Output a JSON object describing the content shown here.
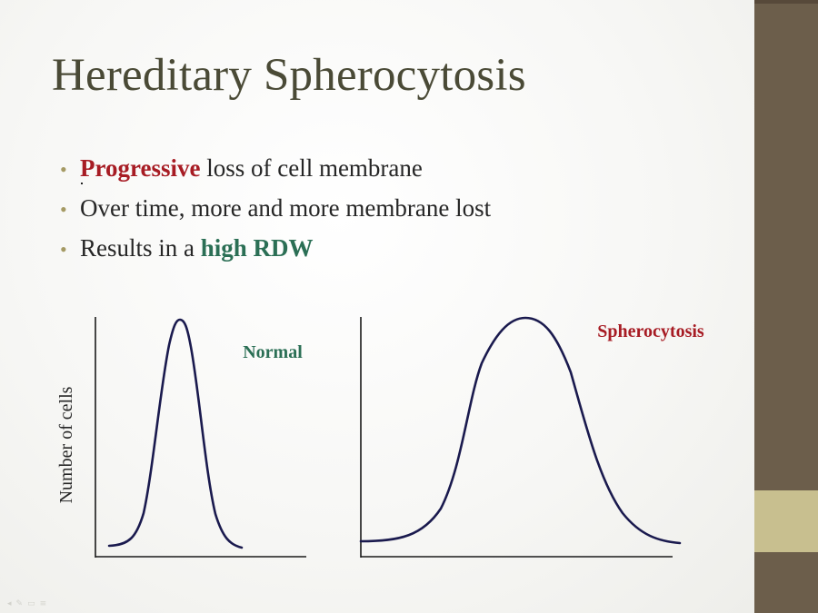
{
  "title": "Hereditary Spherocytosis",
  "bullets": [
    {
      "highlight": "Progressive",
      "rest": " loss of cell membrane"
    },
    {
      "text": "Over time, more and more membrane lost"
    },
    {
      "prefix": "Results in a ",
      "highlight": "high RDW"
    }
  ],
  "bullet_symbol": "•",
  "colors": {
    "title": "#4a4a36",
    "bullet_text": "#262626",
    "red_highlight": "#a71c24",
    "green_highlight": "#2b6f55",
    "curve": "#1a1a4e",
    "axis": "#1a1a1a",
    "sidebar": "#6c5e4b",
    "sidebar_accent": "#c8bf8f"
  },
  "chart_data": [
    {
      "type": "line",
      "title": "Normal",
      "ylabel": "Number of cells",
      "xlabel": "",
      "grid": false,
      "curve": {
        "shape": "narrow-bell"
      }
    },
    {
      "type": "line",
      "title": "Spherocytosis",
      "ylabel": "",
      "xlabel": "",
      "grid": false,
      "curve": {
        "shape": "wide-bell"
      }
    }
  ],
  "footer_icons": [
    "back-icon",
    "pen-icon",
    "slides-icon",
    "menu-icon"
  ]
}
